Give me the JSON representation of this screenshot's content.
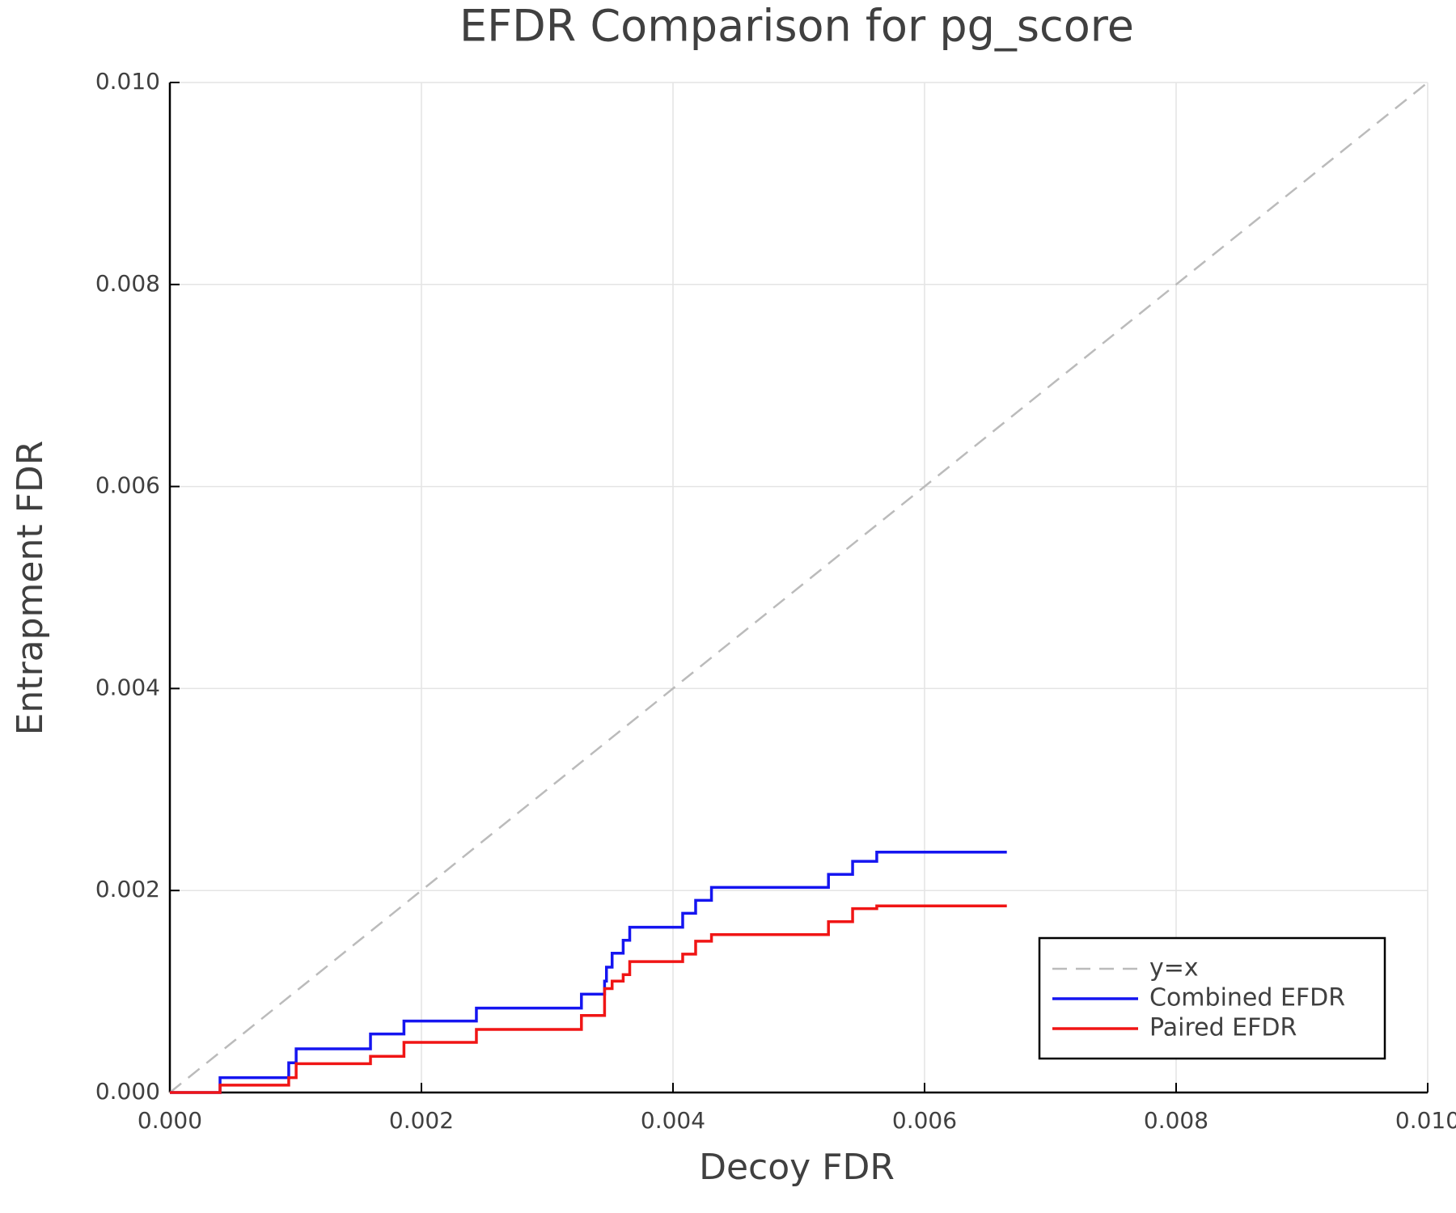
{
  "chart_data": {
    "type": "line",
    "title": "EFDR Comparison for pg_score",
    "xlabel": "Decoy FDR",
    "ylabel": "Entrapment FDR",
    "xlim": [
      0,
      0.01
    ],
    "ylim": [
      0,
      0.01
    ],
    "xticks": [
      {
        "value": 0,
        "label": "0.000"
      },
      {
        "value": 0.002,
        "label": "0.002"
      },
      {
        "value": 0.004,
        "label": "0.004"
      },
      {
        "value": 0.006,
        "label": "0.006"
      },
      {
        "value": 0.008,
        "label": "0.008"
      },
      {
        "value": 0.01,
        "label": "0.010"
      }
    ],
    "yticks": [
      {
        "value": 0,
        "label": "0.000"
      },
      {
        "value": 0.002,
        "label": "0.002"
      },
      {
        "value": 0.004,
        "label": "0.004"
      },
      {
        "value": 0.006,
        "label": "0.006"
      },
      {
        "value": 0.008,
        "label": "0.008"
      },
      {
        "value": 0.01,
        "label": "0.010"
      }
    ],
    "grid": true,
    "legend": "bottom right",
    "series": [
      {
        "name": "y=x",
        "color": "#bbbbbb",
        "dashed": true,
        "x": [
          0,
          0.01
        ],
        "values": [
          0,
          0.01
        ]
      },
      {
        "name": "Combined EFDR",
        "color": "#1515f0",
        "dashed": false,
        "x": [
          0,
          0.000399,
          0.000399,
          0.000945,
          0.000945,
          0.001004,
          0.001004,
          0.001595,
          0.001595,
          0.001861,
          0.001861,
          0.002437,
          0.002437,
          0.003272,
          0.003272,
          0.003456,
          0.003456,
          0.003471,
          0.003471,
          0.003516,
          0.003516,
          0.003604,
          0.003604,
          0.003656,
          0.003656,
          0.004077,
          0.004077,
          0.00418,
          0.00418,
          0.004306,
          0.004306,
          0.005236,
          0.005236,
          0.005428,
          0.005428,
          0.00562,
          0.00562,
          0.006654
        ],
        "values": [
          0,
          0,
          0.000147,
          0.000147,
          0.000294,
          0.000294,
          0.000432,
          0.000432,
          0.000579,
          0.000579,
          0.000708,
          0.000708,
          0.000836,
          0.000836,
          0.000974,
          0.000974,
          0.001103,
          0.001103,
          0.001241,
          0.001241,
          0.001379,
          0.001379,
          0.001507,
          0.001507,
          0.001636,
          0.001636,
          0.001774,
          0.001774,
          0.001903,
          0.001903,
          0.002031,
          0.002031,
          0.00216,
          0.00216,
          0.002289,
          0.002289,
          0.00238,
          0.00238
        ]
      },
      {
        "name": "Paired EFDR",
        "color": "#f01515",
        "dashed": false,
        "x": [
          0,
          0.000399,
          0.000399,
          0.000945,
          0.000945,
          0.001004,
          0.001004,
          0.001595,
          0.001595,
          0.001861,
          0.001861,
          0.002437,
          0.002437,
          0.003272,
          0.003272,
          0.003456,
          0.003456,
          0.003516,
          0.003516,
          0.003604,
          0.003604,
          0.003656,
          0.003656,
          0.004077,
          0.004077,
          0.00418,
          0.00418,
          0.004306,
          0.004306,
          0.005236,
          0.005236,
          0.005428,
          0.005428,
          0.00562,
          0.00562,
          0.006654
        ],
        "values": [
          0,
          0,
          7.35e-05,
          7.35e-05,
          0.000147,
          0.000147,
          0.000285,
          0.000285,
          0.000358,
          0.000358,
          0.000496,
          0.000496,
          0.000625,
          0.000625,
          0.000763,
          0.000763,
          0.001029,
          0.001029,
          0.001103,
          0.001103,
          0.001167,
          0.001167,
          0.001296,
          0.001296,
          0.00137,
          0.00137,
          0.001498,
          0.001498,
          0.001563,
          0.001563,
          0.001691,
          0.001691,
          0.00182,
          0.00182,
          0.001847,
          0.001847
        ]
      }
    ]
  }
}
